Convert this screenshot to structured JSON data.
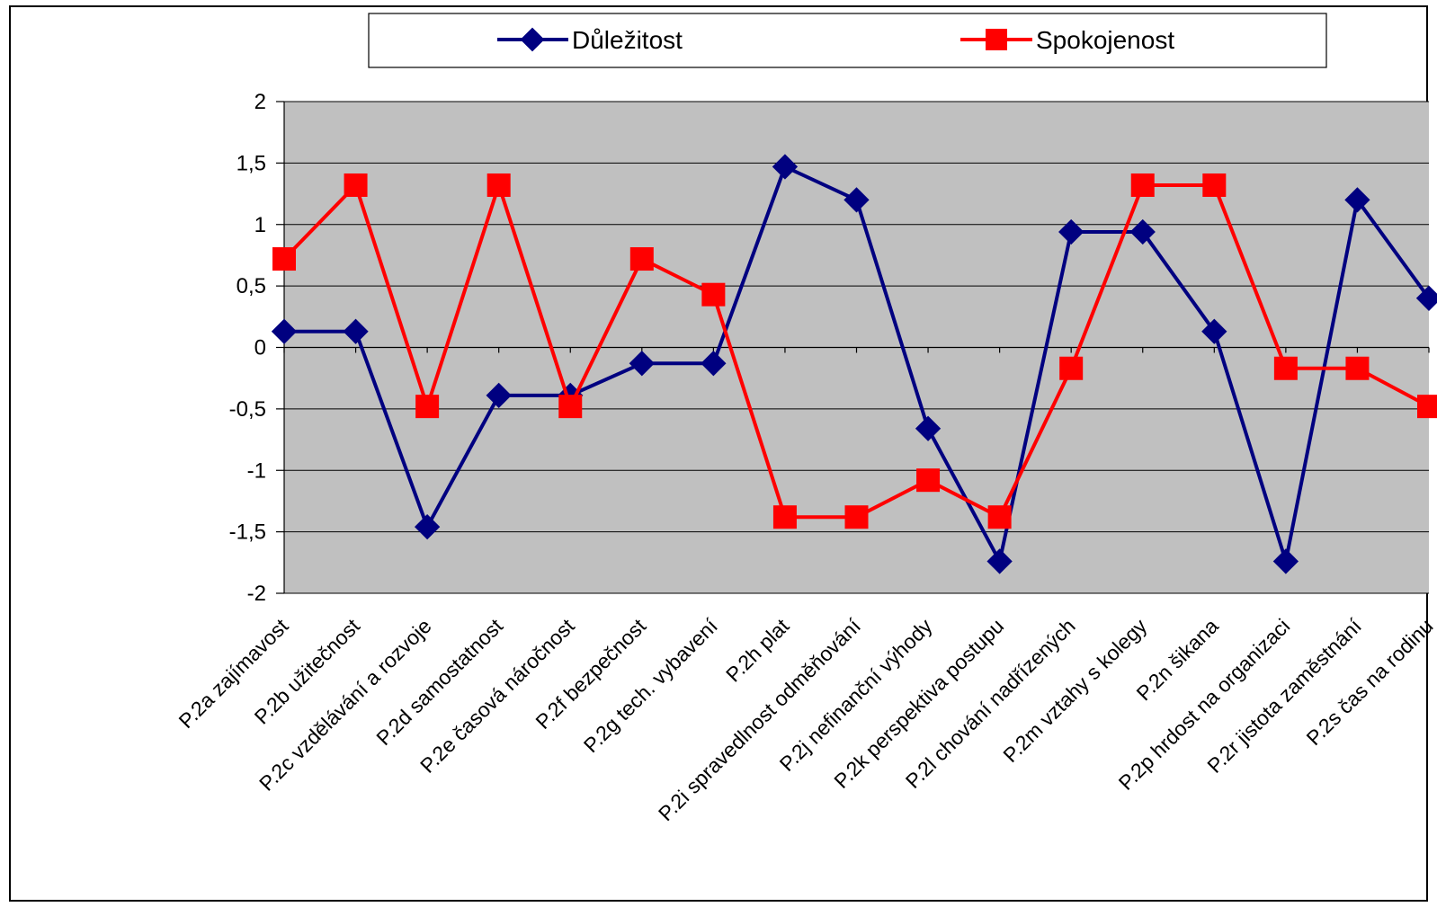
{
  "chart_data": {
    "type": "line",
    "title": "",
    "xlabel": "",
    "ylabel": "",
    "ylim": [
      -2,
      2
    ],
    "ytick_step": 0.5,
    "ytick_labels": [
      "2",
      "1,5",
      "1",
      "0,5",
      "0",
      "-0,5",
      "-1",
      "-1,5",
      "-2"
    ],
    "grid": true,
    "legend_position": "top",
    "plot_background": "#c0c0c0",
    "categories": [
      "P.2a zajímavost",
      "P.2b užitečnost",
      "P.2c vzdělávání a rozvoje",
      "P.2d samostatnost",
      "P.2e časová náročnost",
      "P.2f bezpečnost",
      "P.2g tech. vybavení",
      "P.2h plat",
      "P.2i spravedlnost odměňování",
      "P.2j nefinanční výhody",
      "P.2k perspektiva postupu",
      "P.2l chování nadřízených",
      "P.2m vztahy s kolegy",
      "P.2n šikana",
      "P.2p hrdost na organizaci",
      "P.2r jistota zaměstnání",
      "P.2s čas na rodinu"
    ],
    "series": [
      {
        "name": "Důležitost",
        "color": "#000080",
        "marker": "diamond",
        "values": [
          0.13,
          0.13,
          -1.46,
          -0.39,
          -0.39,
          -0.13,
          -0.13,
          1.47,
          1.2,
          -0.66,
          -1.74,
          0.94,
          0.94,
          0.13,
          -1.74,
          1.2,
          0.4
        ]
      },
      {
        "name": "Spokojenost",
        "color": "#ff0000",
        "marker": "square",
        "values": [
          0.72,
          1.32,
          -0.48,
          1.32,
          -0.48,
          0.72,
          0.43,
          -1.38,
          -1.38,
          -1.08,
          -1.38,
          -0.17,
          1.32,
          1.32,
          -0.17,
          -0.17,
          -0.48
        ]
      }
    ]
  }
}
